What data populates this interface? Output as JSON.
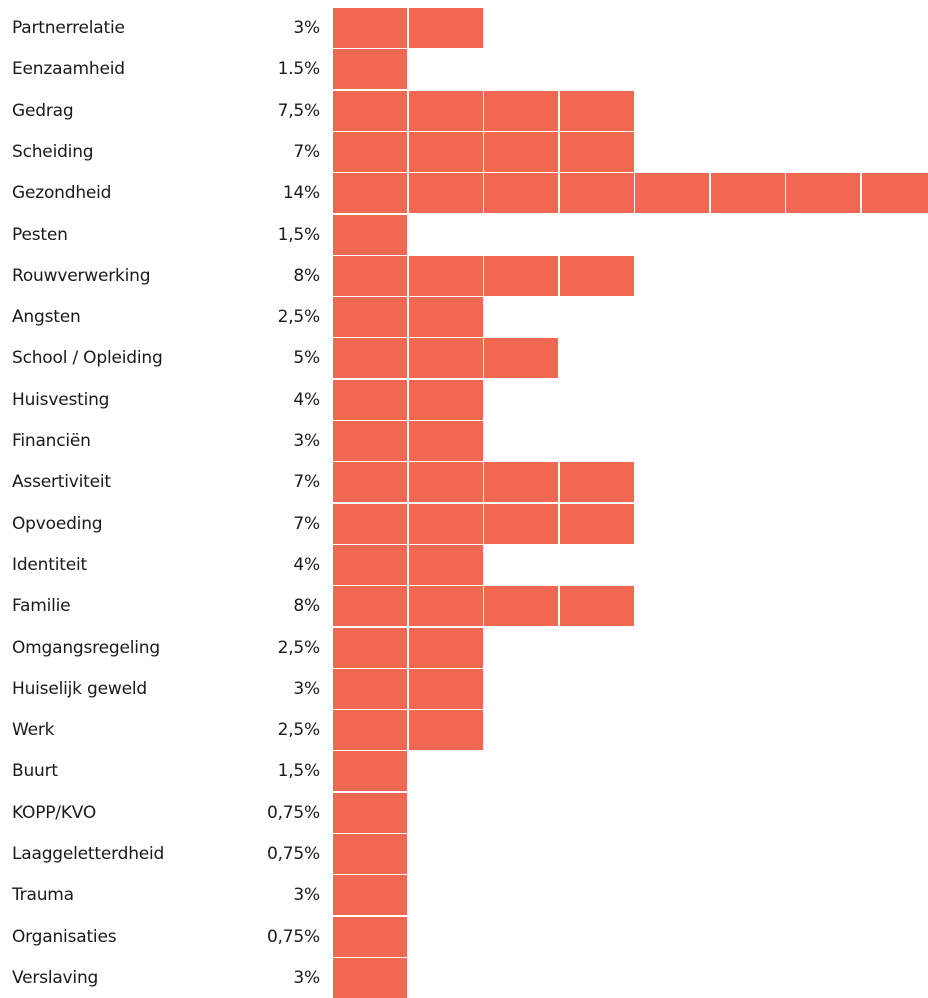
{
  "chart_data": {
    "type": "bar",
    "orientation": "horizontal",
    "title": "",
    "xlabel": "",
    "ylabel": "",
    "bar_color": "#f06752",
    "categories": [
      "Partnerrelatie",
      "Eenzaamheid",
      "Gedrag",
      "Scheiding",
      "Gezondheid",
      "Pesten",
      "Rouwverwerking",
      "Angsten",
      "School / Opleiding",
      "Huisvesting",
      "Financiën",
      "Assertiviteit",
      "Opvoeding",
      "Identiteit",
      "Familie",
      "Omgangsregeling",
      "Huiselijk geweld",
      "Werk",
      "Buurt",
      "KOPP/KVO",
      "Laaggeletterdheid",
      "Trauma",
      "Organisaties",
      "Verslaving"
    ],
    "value_labels": [
      "3%",
      "1.5%",
      "7,5%",
      "7%",
      "14%",
      "1,5%",
      "8%",
      "2,5%",
      "5%",
      "4%",
      "3%",
      "7%",
      "7%",
      "4%",
      "8%",
      "2,5%",
      "3%",
      "2,5%",
      "1,5%",
      "0,75%",
      "0,75%",
      "3%",
      "0,75%",
      "3%"
    ],
    "values": [
      3,
      1.5,
      7.5,
      7,
      14,
      1.5,
      8,
      2.5,
      5,
      4,
      3,
      7,
      7,
      4,
      8,
      2.5,
      3,
      2.5,
      1.5,
      0.75,
      0.75,
      3,
      0.75,
      3
    ],
    "blocks": [
      2,
      1,
      4,
      4,
      8,
      1,
      4,
      2,
      3,
      2,
      2,
      4,
      4,
      2,
      4,
      2,
      2,
      2,
      1,
      1,
      1,
      1,
      1,
      1
    ]
  }
}
